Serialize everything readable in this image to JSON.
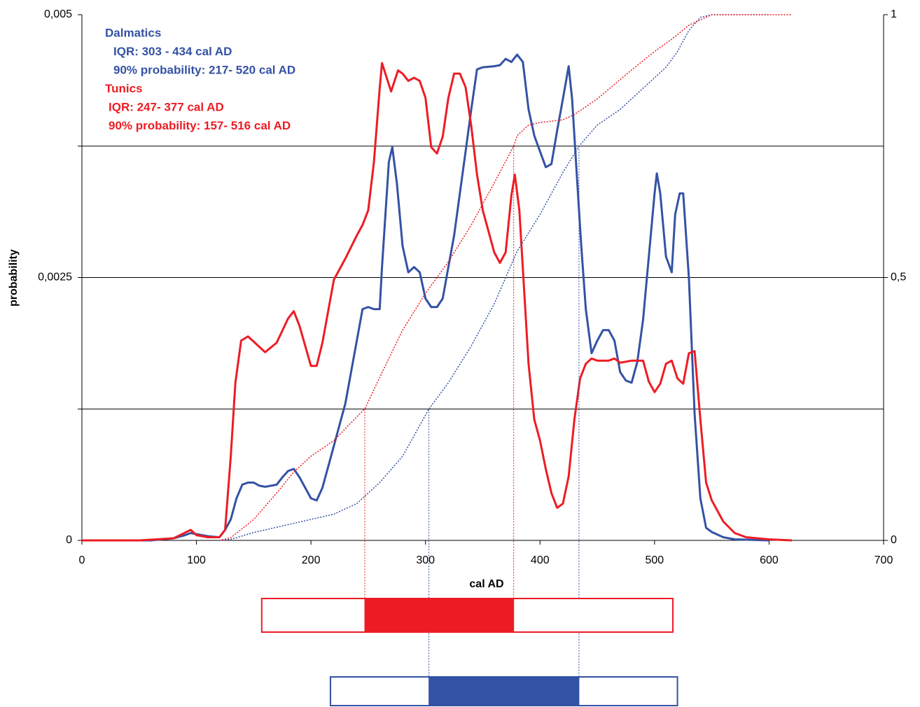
{
  "chart_data": {
    "type": "line",
    "xlabel": "cal AD",
    "ylabel": "probability",
    "xlim": [
      0,
      700
    ],
    "xticks": [
      0,
      100,
      200,
      300,
      400,
      500,
      600,
      700
    ],
    "ylim": [
      0,
      0.005
    ],
    "yticks": [
      0,
      {
        "value": 0.0025,
        "label": "0,0025"
      },
      {
        "value": 0.005,
        "label": "0,005"
      }
    ],
    "ygrid": [
      0.00125,
      0.0025,
      0.00375
    ],
    "y2lim": [
      0,
      1
    ],
    "y2ticks": [
      0,
      {
        "value": 0.5,
        "label": "0,5"
      },
      1
    ],
    "series": [
      {
        "name": "Dalmatics",
        "color": "#3452a4",
        "style": "solid",
        "annotations": [
          "IQR: 303 - 434 cal AD",
          "90% probability: 217- 520 cal AD"
        ],
        "iqr": [
          303,
          434
        ],
        "p90": [
          217,
          520
        ],
        "x": [
          0,
          60,
          80,
          90,
          95,
          100,
          110,
          120,
          125,
          130,
          135,
          140,
          145,
          150,
          155,
          160,
          170,
          175,
          180,
          185,
          190,
          195,
          200,
          205,
          210,
          215,
          220,
          225,
          230,
          235,
          240,
          245,
          250,
          255,
          260,
          262,
          265,
          268,
          271,
          275,
          280,
          285,
          290,
          295,
          300,
          305,
          310,
          315,
          320,
          325,
          330,
          335,
          340,
          345,
          350,
          360,
          365,
          370,
          375,
          380,
          385,
          390,
          395,
          400,
          405,
          410,
          415,
          420,
          425,
          428,
          432,
          436,
          440,
          445,
          450,
          455,
          460,
          465,
          470,
          475,
          480,
          485,
          490,
          495,
          500,
          502,
          505,
          510,
          515,
          518,
          522,
          525,
          530,
          535,
          540,
          545,
          550,
          560,
          570,
          600
        ],
        "values": [
          0,
          0,
          2e-05,
          5e-05,
          7e-05,
          6e-05,
          4e-05,
          3e-05,
          0.0001,
          0.0002,
          0.0004,
          0.00053,
          0.00055,
          0.00055,
          0.00052,
          0.00051,
          0.00053,
          0.0006,
          0.00066,
          0.00068,
          0.0006,
          0.0005,
          0.0004,
          0.00038,
          0.0005,
          0.0007,
          0.0009,
          0.0011,
          0.0013,
          0.0016,
          0.0019,
          0.0022,
          0.00222,
          0.0022,
          0.0022,
          0.0026,
          0.0031,
          0.0036,
          0.00374,
          0.0034,
          0.0028,
          0.00255,
          0.0026,
          0.00255,
          0.0023,
          0.00222,
          0.00222,
          0.0023,
          0.0026,
          0.0029,
          0.0033,
          0.0037,
          0.0041,
          0.00448,
          0.0045,
          0.00451,
          0.00452,
          0.00458,
          0.00455,
          0.00462,
          0.00455,
          0.0041,
          0.00385,
          0.0037,
          0.00355,
          0.00358,
          0.0039,
          0.0042,
          0.00451,
          0.0042,
          0.0035,
          0.0028,
          0.0022,
          0.00178,
          0.0019,
          0.002,
          0.002,
          0.0019,
          0.0016,
          0.00152,
          0.0015,
          0.0017,
          0.0021,
          0.0027,
          0.0033,
          0.00349,
          0.0033,
          0.0027,
          0.00255,
          0.0031,
          0.0033,
          0.0033,
          0.0025,
          0.0012,
          0.0004,
          0.00012,
          8e-05,
          3e-05,
          1e-05,
          0
        ]
      },
      {
        "name": "Tunics",
        "color": "#ed1c24",
        "style": "solid",
        "annotations": [
          "IQR: 247- 377 cal AD",
          "90% probability: 157- 516 cal AD"
        ],
        "iqr": [
          247,
          377
        ],
        "p90": [
          157,
          516
        ],
        "x": [
          0,
          50,
          80,
          95,
          100,
          110,
          120,
          125,
          130,
          134,
          139,
          145,
          150,
          160,
          170,
          180,
          185,
          190,
          200,
          205,
          210,
          220,
          230,
          240,
          245,
          250,
          255,
          260,
          262,
          267,
          270,
          276,
          280,
          285,
          290,
          295,
          300,
          305,
          310,
          315,
          320,
          325,
          330,
          335,
          340,
          345,
          350,
          355,
          360,
          365,
          370,
          375,
          378,
          382,
          390,
          395,
          400,
          405,
          410,
          415,
          420,
          425,
          430,
          435,
          440,
          445,
          450,
          460,
          465,
          470,
          480,
          490,
          495,
          500,
          505,
          510,
          515,
          520,
          525,
          530,
          535,
          540,
          545,
          550,
          555,
          560,
          570,
          580,
          600,
          620
        ],
        "values": [
          0,
          0,
          2e-05,
          0.0001,
          5e-05,
          3e-05,
          3e-05,
          0.0001,
          0.0008,
          0.0015,
          0.0019,
          0.00194,
          0.00189,
          0.00179,
          0.00188,
          0.00211,
          0.00218,
          0.00204,
          0.00166,
          0.00166,
          0.00188,
          0.00248,
          0.00268,
          0.0029,
          0.003,
          0.00314,
          0.0036,
          0.0043,
          0.00454,
          0.00437,
          0.00427,
          0.00447,
          0.00444,
          0.00437,
          0.0044,
          0.00437,
          0.00421,
          0.00374,
          0.00368,
          0.00384,
          0.00421,
          0.00444,
          0.00444,
          0.00431,
          0.00394,
          0.00348,
          0.00314,
          0.00294,
          0.00274,
          0.00264,
          0.00274,
          0.00328,
          0.00348,
          0.00314,
          0.00168,
          0.00115,
          0.00095,
          0.00068,
          0.00045,
          0.00031,
          0.00035,
          0.00061,
          0.00115,
          0.00154,
          0.00168,
          0.00173,
          0.00171,
          0.00171,
          0.00173,
          0.00169,
          0.00171,
          0.00171,
          0.00151,
          0.00141,
          0.00149,
          0.00168,
          0.00171,
          0.00154,
          0.00149,
          0.00178,
          0.0018,
          0.00115,
          0.00055,
          0.00038,
          0.00028,
          0.00018,
          7e-05,
          3e-05,
          1e-05,
          0
        ]
      },
      {
        "color": "#3452a4",
        "style": "dotted",
        "axis": "y2",
        "x": [
          120,
          130,
          150,
          180,
          200,
          220,
          240,
          260,
          280,
          303,
          320,
          340,
          360,
          380,
          400,
          420,
          434,
          450,
          470,
          490,
          510,
          520,
          530,
          540,
          550,
          600
        ],
        "values": [
          0,
          0.002,
          0.015,
          0.03,
          0.04,
          0.05,
          0.07,
          0.11,
          0.16,
          0.25,
          0.3,
          0.37,
          0.45,
          0.55,
          0.62,
          0.7,
          0.75,
          0.79,
          0.82,
          0.86,
          0.9,
          0.93,
          0.97,
          0.995,
          1,
          1
        ]
      },
      {
        "color": "#ed1c24",
        "style": "dotted",
        "axis": "y2",
        "x": [
          120,
          130,
          150,
          170,
          185,
          200,
          220,
          240,
          247,
          260,
          280,
          300,
          320,
          340,
          360,
          377,
          380,
          390,
          400,
          420,
          430,
          450,
          480,
          500,
          516,
          530,
          550,
          600,
          620
        ],
        "values": [
          0,
          0.005,
          0.04,
          0.09,
          0.13,
          0.16,
          0.19,
          0.235,
          0.25,
          0.31,
          0.4,
          0.47,
          0.53,
          0.6,
          0.68,
          0.75,
          0.77,
          0.79,
          0.795,
          0.8,
          0.81,
          0.84,
          0.895,
          0.93,
          0.955,
          0.98,
          1,
          1,
          1
        ]
      }
    ]
  }
}
